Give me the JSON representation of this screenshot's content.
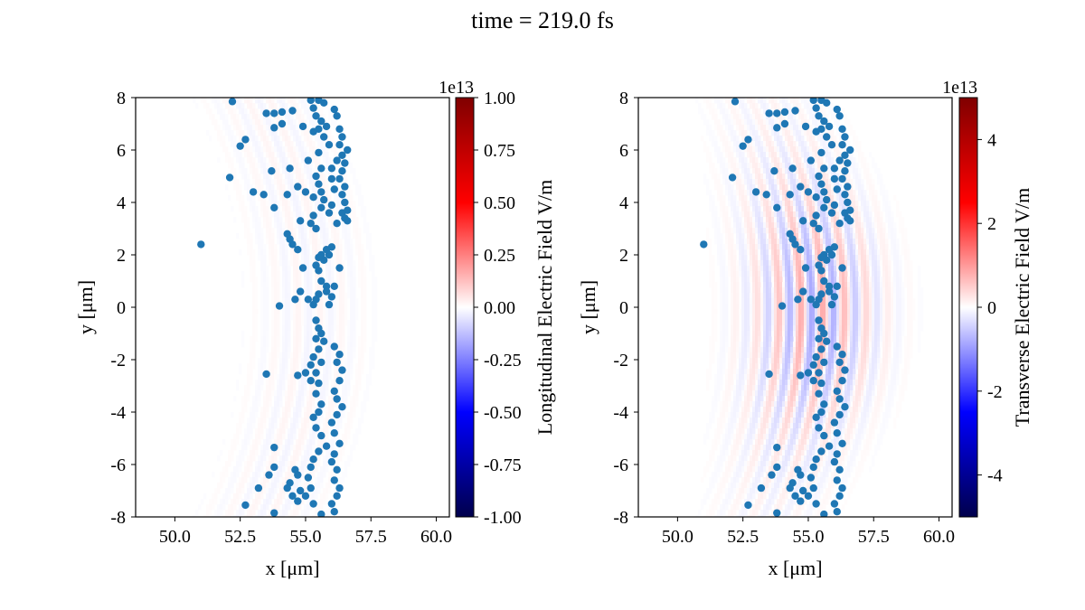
{
  "title": "time = 219.0 fs",
  "chart_data": [
    {
      "type": "scatter",
      "subtitle": "",
      "background": "heatmap (seismic colormap), weak longitudinal field",
      "xlabel": "x [μm]",
      "ylabel": "y [μm]",
      "xlim": [
        48.5,
        60.5
      ],
      "ylim": [
        -8,
        8
      ],
      "xticks": [
        "50.0",
        "52.5",
        "55.0",
        "57.5",
        "60.0"
      ],
      "yticks": [
        "-8",
        "-6",
        "-4",
        "-2",
        "0",
        "2",
        "4",
        "6",
        "8"
      ],
      "colorbar": {
        "label": "Longitudinal Electric Field V/m",
        "multiplier": "1e13",
        "range": [
          -1.0,
          1.0
        ],
        "ticks": [
          "-1.00",
          "-0.75",
          "-0.50",
          "-0.25",
          "0.00",
          "0.25",
          "0.50",
          "0.75",
          "1.00"
        ],
        "colormap": "seismic"
      },
      "marker_color": "#1f77b4",
      "field_amplitude": 0.06
    },
    {
      "type": "scatter",
      "subtitle": "",
      "background": "heatmap (seismic colormap), laser pulse transverse field",
      "xlabel": "x [μm]",
      "ylabel": "y [μm]",
      "xlim": [
        48.5,
        60.5
      ],
      "ylim": [
        -8,
        8
      ],
      "xticks": [
        "50.0",
        "52.5",
        "55.0",
        "57.5",
        "60.0"
      ],
      "yticks": [
        "-8",
        "-6",
        "-4",
        "-2",
        "0",
        "2",
        "4",
        "6",
        "8"
      ],
      "colorbar": {
        "label": "Transverse Electric Field V/m",
        "multiplier": "1e13",
        "range": [
          -5,
          5
        ],
        "ticks": [
          "-4",
          "-2",
          "0",
          "2",
          "4"
        ],
        "colormap": "seismic"
      },
      "marker_color": "#1f77b4",
      "field_amplitude": 0.35
    }
  ],
  "particles": [
    [
      52.2,
      7.85
    ],
    [
      53.5,
      7.4
    ],
    [
      53.8,
      7.4
    ],
    [
      54.1,
      7.45
    ],
    [
      54.5,
      7.5
    ],
    [
      55.2,
      7.9
    ],
    [
      55.5,
      7.9
    ],
    [
      55.7,
      7.8
    ],
    [
      55.3,
      7.6
    ],
    [
      55.4,
      7.3
    ],
    [
      55.6,
      7.1
    ],
    [
      55.5,
      6.8
    ],
    [
      55.7,
      6.5
    ],
    [
      55.3,
      6.7
    ],
    [
      54.9,
      6.9
    ],
    [
      54.1,
      7.0
    ],
    [
      53.8,
      6.85
    ],
    [
      56.1,
      7.55
    ],
    [
      56.2,
      7.3
    ],
    [
      56.3,
      6.8
    ],
    [
      56.4,
      6.5
    ],
    [
      56.3,
      6.2
    ],
    [
      56.4,
      5.8
    ],
    [
      56.5,
      5.5
    ],
    [
      56.4,
      5.2
    ],
    [
      56.3,
      4.9
    ],
    [
      56.5,
      4.6
    ],
    [
      56.4,
      4.3
    ],
    [
      56.5,
      4.0
    ],
    [
      56.6,
      3.7
    ],
    [
      56.5,
      3.4
    ],
    [
      56.4,
      3.6
    ],
    [
      56.6,
      3.3
    ],
    [
      52.7,
      6.4
    ],
    [
      52.5,
      6.15
    ],
    [
      53.7,
      5.2
    ],
    [
      54.4,
      5.3
    ],
    [
      55.1,
      5.6
    ],
    [
      55.5,
      5.9
    ],
    [
      55.6,
      5.3
    ],
    [
      55.4,
      5.0
    ],
    [
      55.5,
      4.7
    ],
    [
      55.6,
      4.4
    ],
    [
      55.7,
      4.1
    ],
    [
      55.6,
      3.8
    ],
    [
      55.3,
      3.5
    ],
    [
      55.2,
      3.2
    ],
    [
      55.3,
      4.2
    ],
    [
      55.0,
      4.4
    ],
    [
      54.7,
      4.6
    ],
    [
      54.3,
      4.3
    ],
    [
      53.8,
      3.8
    ],
    [
      53.4,
      4.3
    ],
    [
      53.0,
      4.4
    ],
    [
      52.1,
      4.95
    ],
    [
      56.0,
      4.9
    ],
    [
      56.1,
      4.5
    ],
    [
      56.0,
      3.9
    ],
    [
      55.9,
      3.6
    ],
    [
      56.2,
      3.2
    ],
    [
      56.0,
      2.3
    ],
    [
      55.9,
      2.0
    ],
    [
      55.7,
      1.8
    ],
    [
      55.6,
      2.0
    ],
    [
      55.5,
      1.9
    ],
    [
      55.8,
      2.2
    ],
    [
      55.4,
      1.6
    ],
    [
      54.9,
      1.5
    ],
    [
      54.7,
      2.2
    ],
    [
      54.5,
      2.4
    ],
    [
      54.3,
      2.8
    ],
    [
      54.4,
      2.6
    ],
    [
      54.8,
      3.3
    ],
    [
      51.0,
      2.4
    ],
    [
      55.6,
      1.0
    ],
    [
      55.8,
      0.8
    ],
    [
      55.5,
      0.5
    ],
    [
      55.4,
      0.3
    ],
    [
      55.8,
      0.6
    ],
    [
      56.0,
      0.4
    ],
    [
      55.9,
      0.1
    ],
    [
      56.1,
      0.8
    ],
    [
      55.3,
      0.1
    ],
    [
      55.1,
      0.3
    ],
    [
      54.8,
      0.6
    ],
    [
      54.6,
      0.3
    ],
    [
      54.0,
      0.05
    ],
    [
      55.4,
      -0.5
    ],
    [
      55.5,
      -0.8
    ],
    [
      55.6,
      -1.0
    ],
    [
      55.4,
      -1.2
    ],
    [
      55.7,
      -1.3
    ],
    [
      55.5,
      -1.6
    ],
    [
      55.3,
      -1.9
    ],
    [
      55.2,
      -2.2
    ],
    [
      55.4,
      -2.5
    ],
    [
      55.2,
      -2.8
    ],
    [
      55.0,
      -2.5
    ],
    [
      54.7,
      -2.6
    ],
    [
      55.6,
      -2.1
    ],
    [
      55.5,
      -2.9
    ],
    [
      55.4,
      -3.3
    ],
    [
      55.6,
      -3.7
    ],
    [
      55.5,
      -4.0
    ],
    [
      55.3,
      -4.2
    ],
    [
      55.4,
      -4.6
    ],
    [
      55.6,
      -4.9
    ],
    [
      55.8,
      -5.3
    ],
    [
      55.5,
      -5.5
    ],
    [
      55.3,
      -5.8
    ],
    [
      55.2,
      -6.1
    ],
    [
      55.1,
      -6.5
    ],
    [
      55.2,
      -6.9
    ],
    [
      55.0,
      -7.2
    ],
    [
      55.3,
      -7.5
    ],
    [
      55.6,
      -7.9
    ],
    [
      56.1,
      -1.5
    ],
    [
      56.3,
      -1.8
    ],
    [
      56.2,
      -2.1
    ],
    [
      56.4,
      -2.4
    ],
    [
      56.3,
      -2.8
    ],
    [
      56.1,
      -3.2
    ],
    [
      56.2,
      -3.5
    ],
    [
      56.4,
      -3.8
    ],
    [
      56.2,
      -4.1
    ],
    [
      56.0,
      -4.4
    ],
    [
      56.1,
      -4.8
    ],
    [
      56.3,
      -5.2
    ],
    [
      56.1,
      -5.6
    ],
    [
      56.0,
      -5.9
    ],
    [
      56.2,
      -6.2
    ],
    [
      56.1,
      -6.6
    ],
    [
      56.3,
      -6.9
    ],
    [
      56.2,
      -7.2
    ],
    [
      56.0,
      -7.5
    ],
    [
      56.1,
      -7.8
    ],
    [
      53.5,
      -2.55
    ],
    [
      53.8,
      -5.35
    ],
    [
      53.8,
      -6.1
    ],
    [
      53.6,
      -6.4
    ],
    [
      53.2,
      -6.9
    ],
    [
      52.7,
      -7.55
    ],
    [
      53.8,
      -7.85
    ],
    [
      54.4,
      -6.7
    ],
    [
      54.6,
      -6.2
    ],
    [
      54.7,
      -6.4
    ],
    [
      54.8,
      -7.0
    ],
    [
      54.5,
      -7.2
    ],
    [
      54.7,
      -7.4
    ],
    [
      54.3,
      -6.9
    ],
    [
      55.5,
      1.4
    ],
    [
      56.3,
      1.5
    ],
    [
      55.4,
      3.0
    ],
    [
      56.6,
      6.0
    ],
    [
      56.2,
      5.6
    ],
    [
      55.8,
      6.9
    ],
    [
      55.9,
      6.2
    ],
    [
      56.0,
      5.3
    ]
  ]
}
